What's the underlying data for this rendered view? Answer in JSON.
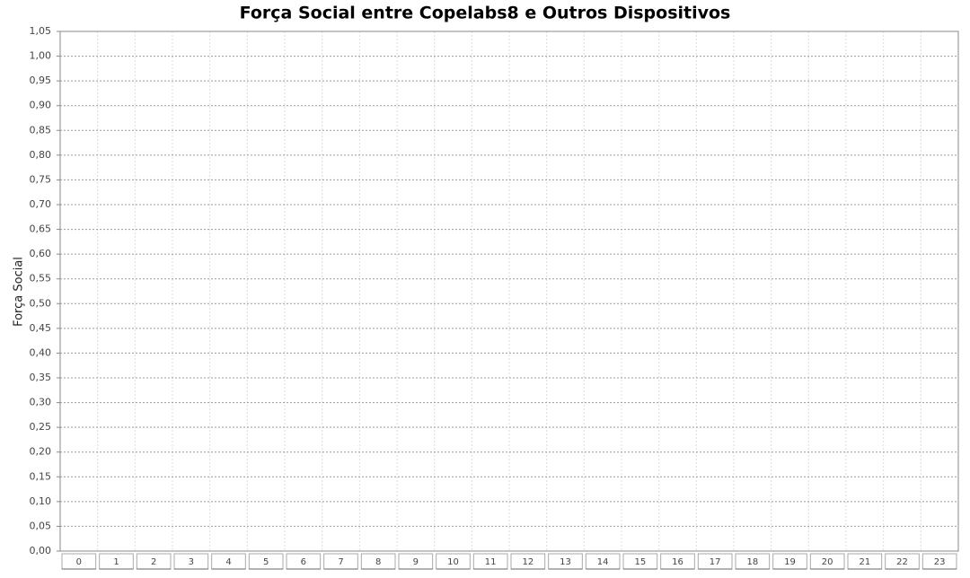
{
  "chart_data": {
    "type": "bar",
    "title": "Força Social entre Copelabs8 e Outros Dispositivos",
    "y_label": "Força Social",
    "categories": [
      "0",
      "1",
      "2",
      "3",
      "4",
      "5",
      "6",
      "7",
      "8",
      "9",
      "10",
      "11",
      "12",
      "13",
      "14",
      "15",
      "16",
      "17",
      "18",
      "19",
      "20",
      "21",
      "22",
      "23"
    ],
    "ylim": [
      0,
      1.05
    ],
    "yticks": [
      {
        "value": 0,
        "label": "0,00"
      },
      {
        "value": 0.05,
        "label": "0,05"
      },
      {
        "value": 0.1,
        "label": "0,10"
      },
      {
        "value": 0.15,
        "label": "0,15"
      },
      {
        "value": 0.2,
        "label": "0,20"
      },
      {
        "value": 0.25,
        "label": "0,25"
      },
      {
        "value": 0.3,
        "label": "0,30"
      },
      {
        "value": 0.35,
        "label": "0,35"
      },
      {
        "value": 0.4,
        "label": "0,40"
      },
      {
        "value": 0.45,
        "label": "0,45"
      },
      {
        "value": 0.5,
        "label": "0,50"
      },
      {
        "value": 0.55,
        "label": "0,55"
      },
      {
        "value": 0.6,
        "label": "0,60"
      },
      {
        "value": 0.65,
        "label": "0,65"
      },
      {
        "value": 0.7,
        "label": "0,70"
      },
      {
        "value": 0.75,
        "label": "0,75"
      },
      {
        "value": 0.8,
        "label": "0,80"
      },
      {
        "value": 0.85,
        "label": "0,85"
      },
      {
        "value": 0.9,
        "label": "0,90"
      },
      {
        "value": 0.95,
        "label": "0,95"
      },
      {
        "value": 1,
        "label": "1,00"
      },
      {
        "value": 1.05,
        "label": "1,05"
      }
    ],
    "grid": true
  }
}
